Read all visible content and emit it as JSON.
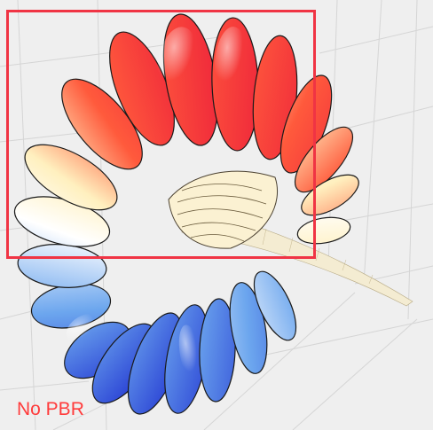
{
  "viewer": {
    "mode_label": "No PBR"
  },
  "colors": {
    "background": "#efefef",
    "grid": "#d4d4d4",
    "selection_box": "#f03444",
    "label": "#ff3b3b",
    "colormap": [
      "#1e2fd0",
      "#6ca6ee",
      "#ffffff",
      "#fff0bf",
      "#ff3030",
      "#e8103a"
    ]
  }
}
